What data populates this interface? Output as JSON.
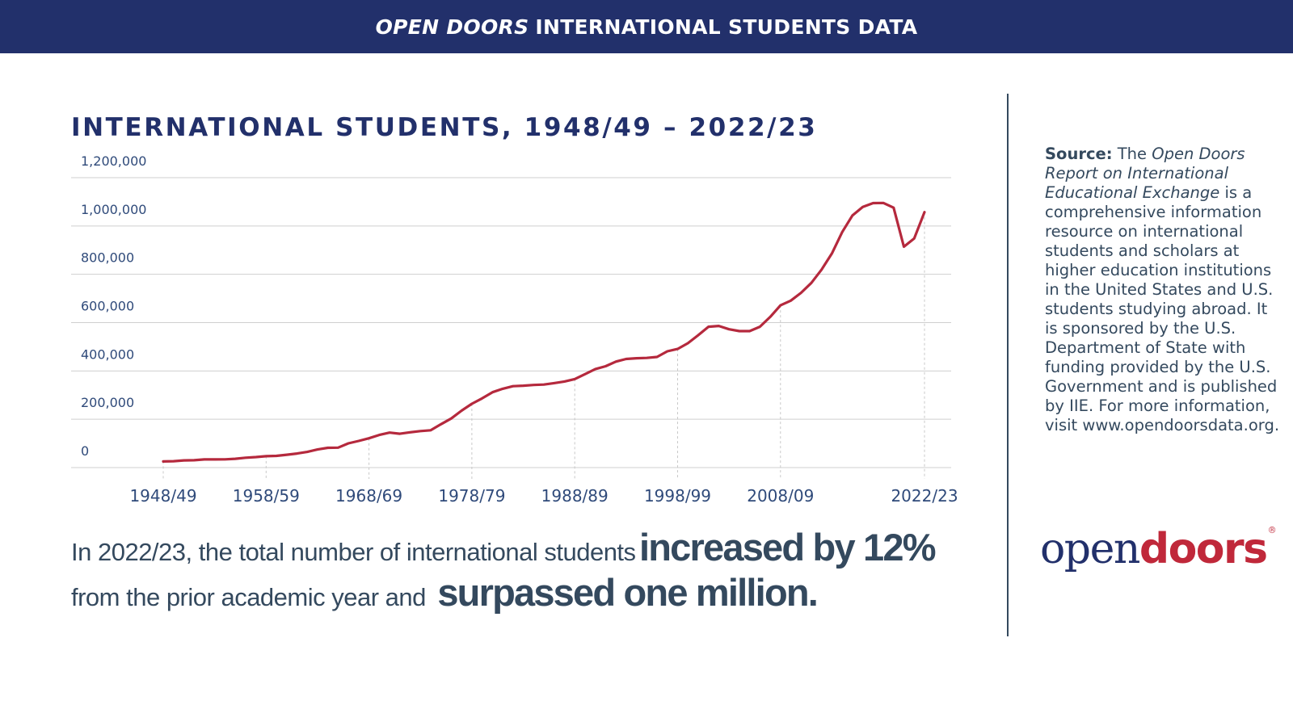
{
  "header": {
    "title_italic": "OPEN DOORS",
    "title_rest": "INTERNATIONAL STUDENTS DATA"
  },
  "chart_data": {
    "type": "line",
    "title": "INTERNATIONAL STUDENTS, 1948/49 – 2022/23",
    "y_ticks": [
      "0",
      "200,000",
      "400,000",
      "600,000",
      "800,000",
      "1,000,000",
      "1,200,000"
    ],
    "x_ticks": [
      "1948/49",
      "1958/59",
      "1968/69",
      "1978/79",
      "1988/89",
      "1998/99",
      "2008/09",
      "2022/23"
    ],
    "ylim": [
      0,
      1200000
    ],
    "grid": true,
    "color": "#b5293d",
    "x": [
      1948,
      1949,
      1950,
      1951,
      1952,
      1953,
      1954,
      1955,
      1956,
      1957,
      1958,
      1959,
      1960,
      1961,
      1962,
      1963,
      1964,
      1965,
      1966,
      1967,
      1968,
      1969,
      1970,
      1971,
      1972,
      1973,
      1974,
      1975,
      1976,
      1977,
      1978,
      1979,
      1980,
      1981,
      1982,
      1983,
      1984,
      1985,
      1986,
      1987,
      1988,
      1989,
      1990,
      1991,
      1992,
      1993,
      1994,
      1995,
      1996,
      1997,
      1998,
      1999,
      2000,
      2001,
      2002,
      2003,
      2004,
      2005,
      2006,
      2007,
      2008,
      2009,
      2010,
      2011,
      2012,
      2013,
      2014,
      2015,
      2016,
      2017,
      2018,
      2019,
      2020,
      2021,
      2022
    ],
    "values": [
      25464,
      26433,
      29813,
      30462,
      33675,
      33833,
      34232,
      36494,
      40666,
      43391,
      47245,
      48486,
      53107,
      58086,
      64705,
      74814,
      82045,
      82709,
      100262,
      110315,
      121362,
      134959,
      144708,
      140126,
      146097,
      151066,
      154580,
      179344,
      203068,
      235509,
      263938,
      286343,
      311882,
      326299,
      336985,
      338894,
      342113,
      343777,
      349609,
      356187,
      366354,
      386851,
      407529,
      419585,
      438618,
      449749,
      452635,
      453787,
      457984,
      481280,
      490933,
      514723,
      547867,
      582996,
      586323,
      572509,
      565039,
      564766,
      582984,
      623805,
      671616,
      690923,
      723277,
      764495,
      819644,
      886052,
      974926,
      1043839,
      1078822,
      1094792,
      1095299,
      1075496,
      914095,
      948519,
      1057188
    ]
  },
  "summary": {
    "line1_small": "In 2022/23, the total number of international students",
    "line1_big": "increased by 12%",
    "line2_small": "from the prior academic year and",
    "line2_big": "surpassed one million."
  },
  "source": {
    "label": "Source:",
    "text1": "The",
    "report_title": "Open Doors Report on International Educational Exchange",
    "text2": "is a comprehensive information resource on international students and scholars at higher education institutions in the United States and U.S. students studying abroad. It is sponsored by the U.S. Department of State with funding provided by the U.S. Government and is published by IIE. For more information, visit www.opendoorsdata.org."
  },
  "logo": {
    "part1": "open",
    "part2": "doors",
    "mark": "®"
  },
  "colors": {
    "navy": "#22306b",
    "red": "#b5293d",
    "slate": "#34495e"
  }
}
